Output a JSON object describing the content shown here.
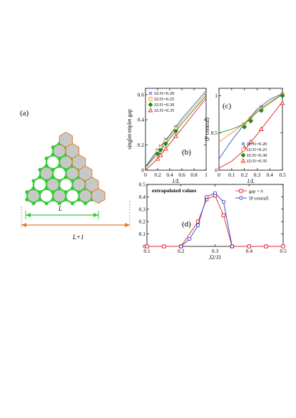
{
  "panel_labels": {
    "a": "(a)",
    "b": "(b)",
    "c": "(c)",
    "d": "(d)"
  },
  "lattice_labels": {
    "L": "L",
    "L_plus_1": "L+1"
  },
  "colors": {
    "hexagon_fill": "#c8c8c8",
    "hexagon_edge": "#e07a2a",
    "site": "#33cc33",
    "arrow": "#e07a2a",
    "arrow_L": "#33cc33",
    "s020": "#2a5fd6",
    "s025": "#ff8c1a",
    "s030": "#1a8c1a",
    "s035": "#e02020",
    "gap_series": "#e02020",
    "p_series": "#2a3fd6"
  },
  "chart_data": [
    {
      "id": "b",
      "type": "line",
      "xlabel": "1/L",
      "ylabel": "singlet-triplet gap",
      "xlim": [
        0,
        1
      ],
      "ylim": [
        0,
        0.65
      ],
      "xticks": [
        "0",
        "0.2",
        "0.4",
        "0.6",
        "0.8",
        "1"
      ],
      "yticks": [
        "0",
        "0.2",
        "0.4",
        "0.6"
      ],
      "legend_position": "top-left",
      "series": [
        {
          "name": "J2/J1=0.20",
          "marker": "x",
          "x": [
            0.2,
            0.25,
            0.333,
            0.5
          ],
          "y": [
            0.16,
            0.19,
            0.245,
            0.345
          ],
          "fit_x": [
            0,
            0.2,
            0.4,
            0.6,
            0.8,
            1.0
          ],
          "fit_y": [
            0.03,
            0.16,
            0.28,
            0.41,
            0.52,
            0.63
          ]
        },
        {
          "name": "J2/J1=0.25",
          "marker": "square",
          "x": [
            0.2,
            0.25,
            0.333,
            0.5
          ],
          "y": [
            0.15,
            0.18,
            0.23,
            0.33
          ],
          "fit_x": [
            0,
            0.2,
            0.4,
            0.6,
            0.8,
            1.0
          ],
          "fit_y": [
            0.02,
            0.15,
            0.27,
            0.39,
            0.5,
            0.61
          ]
        },
        {
          "name": "J2/J1=0.30",
          "marker": "diamond",
          "x": [
            0.2,
            0.25,
            0.333,
            0.5
          ],
          "y": [
            0.13,
            0.16,
            0.21,
            0.31
          ],
          "fit_x": [
            0,
            0.2,
            0.4,
            0.6,
            0.8,
            1.0
          ],
          "fit_y": [
            0.02,
            0.13,
            0.25,
            0.37,
            0.48,
            0.59
          ]
        },
        {
          "name": "J2/J1=0.35",
          "marker": "triangle",
          "x": [
            0.2,
            0.25,
            0.333,
            0.5
          ],
          "y": [
            0.09,
            0.12,
            0.17,
            0.27
          ],
          "fit_x": [
            0,
            0.2,
            0.4,
            0.6,
            0.8,
            1.0
          ],
          "fit_y": [
            0.0,
            0.09,
            0.21,
            0.33,
            0.45,
            0.57
          ]
        }
      ]
    },
    {
      "id": "c",
      "type": "line",
      "xlabel": "1/L",
      "ylabel": "⟨P central⟩",
      "xlim": [
        0,
        0.5
      ],
      "ylim": [
        0,
        1.1
      ],
      "xticks": [
        "0",
        "0.1",
        "0.2",
        "0.3",
        "0.4",
        "0.5"
      ],
      "yticks": [
        "0",
        "0.5",
        "1"
      ],
      "legend_position": "bottom-right",
      "series": [
        {
          "name": "J2/J1=0.20",
          "marker": "x",
          "x": [
            0.2,
            0.25,
            0.333,
            0.5
          ],
          "y": [
            0.62,
            0.7,
            0.85,
            1.02
          ],
          "fit_x": [
            0,
            0.1,
            0.2,
            0.3,
            0.4,
            0.5
          ],
          "fit_y": [
            0.15,
            0.4,
            0.62,
            0.82,
            0.95,
            1.03
          ]
        },
        {
          "name": "J2/J1=0.25",
          "marker": "square",
          "x": [
            0.2,
            0.25,
            0.333,
            0.5
          ],
          "y": [
            0.6,
            0.68,
            0.82,
            1.01
          ],
          "fit_x": [
            0,
            0.1,
            0.2,
            0.3,
            0.4,
            0.5
          ],
          "fit_y": [
            0.38,
            0.5,
            0.63,
            0.8,
            0.92,
            1.02
          ]
        },
        {
          "name": "J2/J1=0.30",
          "marker": "diamond",
          "x": [
            0.2,
            0.25,
            0.333,
            0.5
          ],
          "y": [
            0.58,
            0.66,
            0.8,
            1.0
          ],
          "fit_x": [
            0,
            0.1,
            0.2,
            0.3,
            0.4,
            0.5
          ],
          "fit_y": [
            0.5,
            0.55,
            0.62,
            0.78,
            0.9,
            1.02
          ]
        },
        {
          "name": "J2/J1=0.35",
          "marker": "triangle",
          "x": [
            0.2,
            0.25,
            0.333,
            0.5
          ],
          "y": [
            0.3,
            0.38,
            0.55,
            0.9
          ],
          "fit_x": [
            0,
            0.1,
            0.2,
            0.3,
            0.4,
            0.5
          ],
          "fit_y": [
            0.03,
            0.12,
            0.27,
            0.48,
            0.7,
            0.92
          ]
        }
      ]
    },
    {
      "id": "d",
      "type": "line",
      "title": "extrapolated values",
      "xlabel": "J2/J1",
      "ylabel": "",
      "xlim": [
        0.1,
        0.5
      ],
      "ylim": [
        0,
        0.5
      ],
      "xticks": [
        "0.1",
        "0.2",
        "0.3",
        "0.4",
        "0.5"
      ],
      "yticks": [
        "0",
        "0.1",
        "0.2",
        "0.3",
        "0.4",
        "0.5"
      ],
      "legend_position": "top-right",
      "series": [
        {
          "name": "gap × 9",
          "marker": "square",
          "x": [
            0.1,
            0.15,
            0.2,
            0.25,
            0.275,
            0.3,
            0.325,
            0.35,
            0.4,
            0.45,
            0.5
          ],
          "y": [
            0,
            0,
            0,
            0.2,
            0.38,
            0.41,
            0.25,
            0,
            0,
            0,
            0
          ]
        },
        {
          "name": "⟨P central⟩",
          "marker": "circle",
          "x": [
            0.2,
            0.225,
            0.25,
            0.275,
            0.3,
            0.325,
            0.35
          ],
          "y": [
            0,
            0.06,
            0.17,
            0.4,
            0.43,
            0.36,
            0
          ]
        }
      ]
    }
  ]
}
